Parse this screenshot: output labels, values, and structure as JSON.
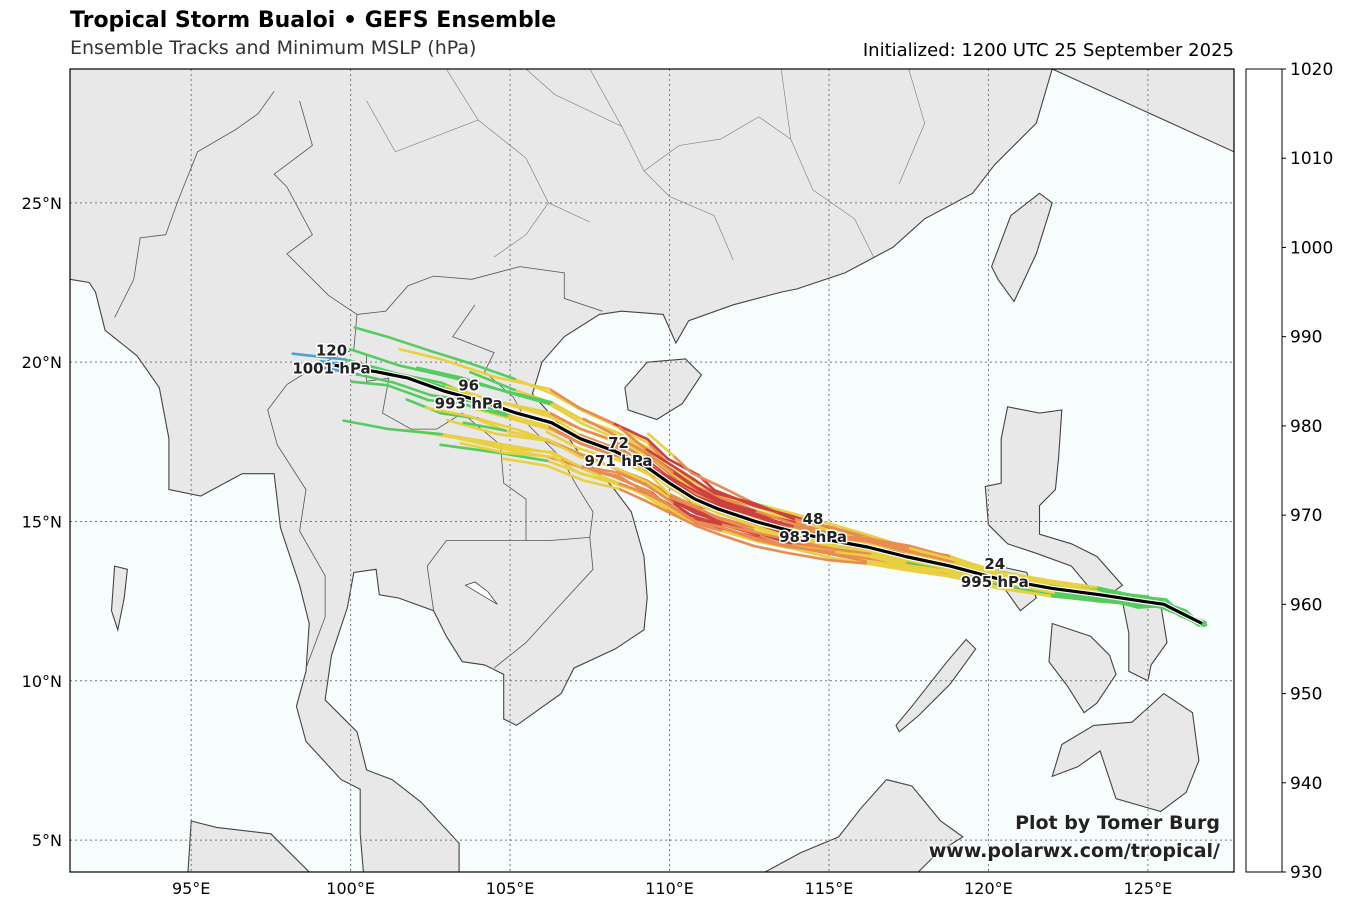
{
  "header": {
    "title": "Tropical Storm Bualoi • GEFS Ensemble",
    "subtitle": "Ensemble Tracks and Minimum MSLP (hPa)",
    "initialized": "Initialized: 1200 UTC 25 September 2025"
  },
  "credit": {
    "line1": "Plot by Tomer Burg",
    "line2": "www.polarwx.com/tropical/"
  },
  "map": {
    "lon_range": [
      91.2,
      127.7
    ],
    "lat_range": [
      4.0,
      29.2
    ],
    "lon_ticks": [
      {
        "value": 95,
        "label": "95°E"
      },
      {
        "value": 100,
        "label": "100°E"
      },
      {
        "value": 105,
        "label": "105°E"
      },
      {
        "value": 110,
        "label": "110°E"
      },
      {
        "value": 115,
        "label": "115°E"
      },
      {
        "value": 120,
        "label": "120°E"
      },
      {
        "value": 125,
        "label": "125°E"
      }
    ],
    "lat_ticks": [
      {
        "value": 5,
        "label": "5°N"
      },
      {
        "value": 10,
        "label": "10°N"
      },
      {
        "value": 15,
        "label": "15°N"
      },
      {
        "value": 20,
        "label": "20°N"
      },
      {
        "value": 25,
        "label": "25°N"
      }
    ],
    "colors": {
      "ocean": "#f7fcfd",
      "land": "#e8e8e8",
      "coast": "#444444",
      "grid": "#777777",
      "mean_track": "#000000"
    }
  },
  "chart_data": {
    "type": "map",
    "ensemble_mean_track": [
      [
        126.7,
        11.8
      ],
      [
        126.1,
        12.1
      ],
      [
        125.5,
        12.4
      ],
      [
        124.8,
        12.5
      ],
      [
        123.5,
        12.7
      ],
      [
        122.0,
        12.9
      ],
      [
        120.3,
        13.2
      ],
      [
        118.8,
        13.6
      ],
      [
        117.4,
        13.9
      ],
      [
        116.2,
        14.2
      ],
      [
        115.1,
        14.4
      ],
      [
        113.8,
        14.7
      ],
      [
        112.7,
        15.0
      ],
      [
        111.5,
        15.4
      ],
      [
        110.8,
        15.7
      ],
      [
        110.0,
        16.2
      ],
      [
        109.3,
        16.7
      ],
      [
        108.3,
        17.2
      ],
      [
        107.2,
        17.6
      ],
      [
        106.3,
        18.1
      ],
      [
        105.2,
        18.4
      ],
      [
        104.0,
        18.8
      ],
      [
        102.9,
        19.1
      ],
      [
        101.8,
        19.5
      ],
      [
        100.8,
        19.7
      ],
      [
        99.5,
        19.9
      ]
    ],
    "mean_track_labels": [
      {
        "hour": "24",
        "mslp": "995 hPa",
        "lon": 120.2,
        "lat": 13.2
      },
      {
        "hour": "48",
        "mslp": "983 hPa",
        "lon": 114.5,
        "lat": 14.6
      },
      {
        "hour": "72",
        "mslp": "971 hPa",
        "lon": 108.4,
        "lat": 17.0
      },
      {
        "hour": "96",
        "mslp": "993 hPa",
        "lon": 103.7,
        "lat": 18.8
      },
      {
        "hour": "120",
        "mslp": "1001 hPa",
        "lon": 99.4,
        "lat": 19.9
      }
    ],
    "colorbar": {
      "ticks": [
        "930",
        "940",
        "950",
        "960",
        "970",
        "980",
        "990",
        "1000",
        "1010",
        "1020"
      ],
      "colors": [
        "#eca8e8",
        "#c955c8",
        "#8b1f1f",
        "#cc4040",
        "#e98c52",
        "#e8d040",
        "#55cc5f",
        "#4ba3d3",
        "#a5d3ee"
      ]
    }
  }
}
